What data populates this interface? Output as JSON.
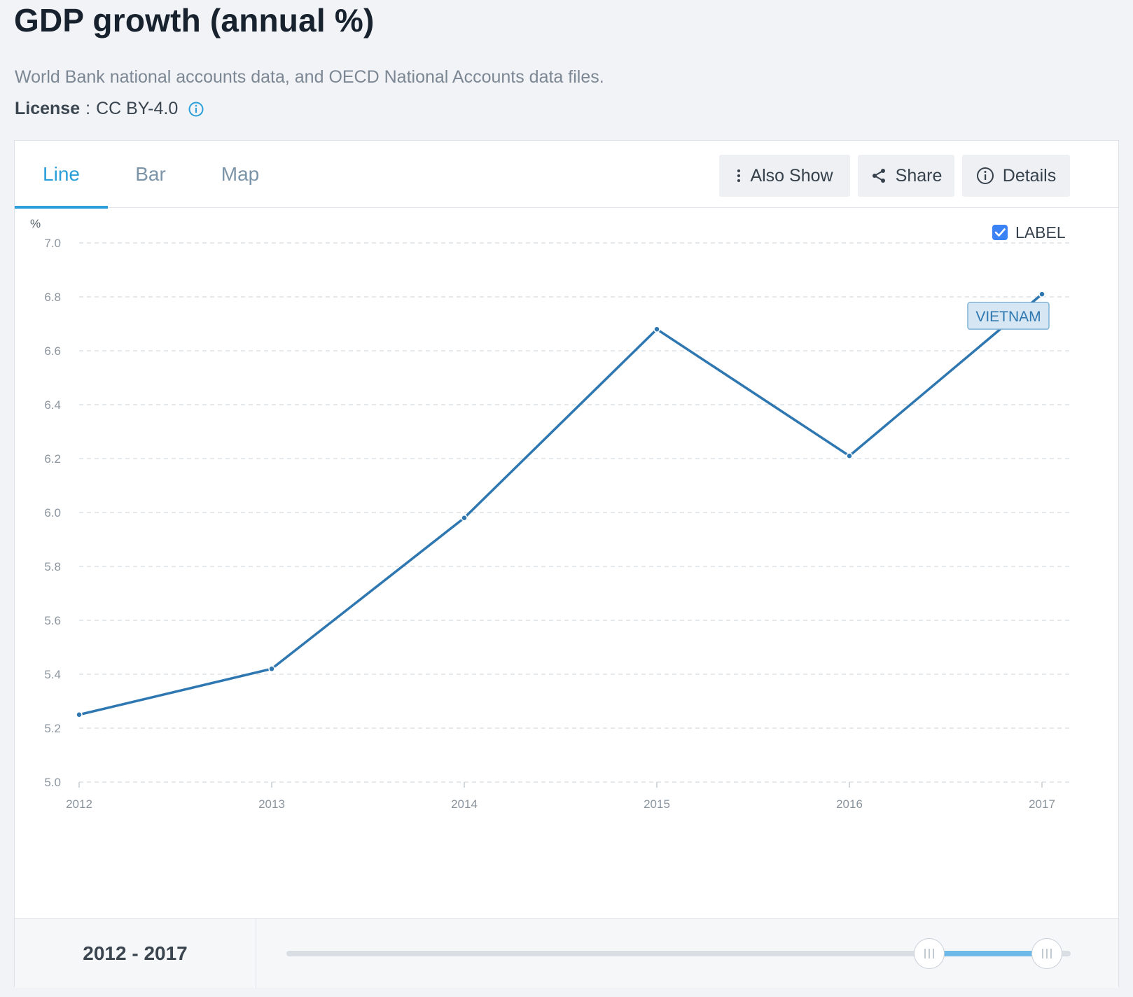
{
  "header": {
    "title": "GDP growth (annual %)",
    "source": "World Bank national accounts data, and OECD National Accounts data files.",
    "license_label": "License",
    "license_sep": ":",
    "license_value": "CC BY-4.0"
  },
  "tabs": [
    {
      "label": "Line",
      "active": true
    },
    {
      "label": "Bar",
      "active": false
    },
    {
      "label": "Map",
      "active": false
    }
  ],
  "toolbar": {
    "also_show": "Also Show",
    "share": "Share",
    "details": "Details"
  },
  "label_toggle": {
    "text": "LABEL",
    "checked": true
  },
  "colors": {
    "accent": "#2a9fd8",
    "series": "#2e77b0",
    "checkbox": "#3b82f6",
    "series_label_bg": "#d6e7f3",
    "series_label_border": "#7fb1d6"
  },
  "range": {
    "start": "2012",
    "sep": "-",
    "end": "2017",
    "selected_fraction": [
      0.82,
      0.97
    ]
  },
  "chart_data": {
    "type": "line",
    "title": "GDP growth (annual %)",
    "ylabel": "%",
    "xlabel": "",
    "x": [
      "2012",
      "2013",
      "2014",
      "2015",
      "2016",
      "2017"
    ],
    "ylim": [
      5.0,
      7.0
    ],
    "yticks": [
      "5.0",
      "5.2",
      "5.4",
      "5.6",
      "5.8",
      "6.0",
      "6.2",
      "6.4",
      "6.6",
      "6.8",
      "7.0"
    ],
    "grid": true,
    "series": [
      {
        "name": "VIETNAM",
        "values": [
          5.25,
          5.42,
          5.98,
          6.68,
          6.21,
          6.81
        ]
      }
    ]
  }
}
